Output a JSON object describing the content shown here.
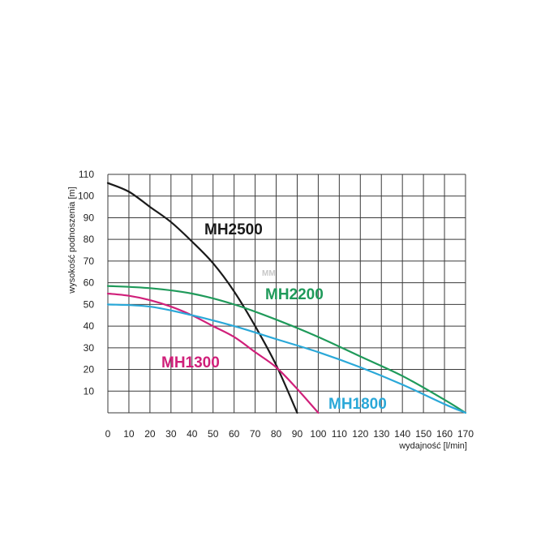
{
  "chart_data": {
    "type": "line",
    "xlabel": "wydajność [l/min]",
    "ylabel": "wysokość podnoszenia [m]",
    "xlim": [
      0,
      170
    ],
    "ylim": [
      0,
      110
    ],
    "x_ticks": [
      0,
      10,
      20,
      30,
      40,
      50,
      60,
      70,
      80,
      90,
      100,
      110,
      120,
      130,
      140,
      150,
      160,
      170
    ],
    "y_ticks": [
      10,
      20,
      30,
      40,
      50,
      60,
      70,
      80,
      90,
      100,
      110
    ],
    "grid": true,
    "small_mark": "MM",
    "series": [
      {
        "name": "MH2500",
        "color": "#1a1a1a",
        "points": [
          [
            0,
            106
          ],
          [
            10,
            102
          ],
          [
            20,
            95
          ],
          [
            30,
            88
          ],
          [
            40,
            79
          ],
          [
            50,
            69
          ],
          [
            60,
            56
          ],
          [
            70,
            40
          ],
          [
            80,
            22
          ],
          [
            90,
            0
          ]
        ]
      },
      {
        "name": "MH2200",
        "color": "#1f9a5a",
        "points": [
          [
            0,
            58.5
          ],
          [
            20,
            57.5
          ],
          [
            40,
            55
          ],
          [
            60,
            50
          ],
          [
            80,
            43
          ],
          [
            100,
            35
          ],
          [
            120,
            26
          ],
          [
            140,
            17
          ],
          [
            160,
            6
          ],
          [
            170,
            0
          ]
        ]
      },
      {
        "name": "MH1300",
        "color": "#d0207a",
        "points": [
          [
            0,
            55
          ],
          [
            10,
            54
          ],
          [
            20,
            52
          ],
          [
            30,
            49
          ],
          [
            40,
            45
          ],
          [
            50,
            40
          ],
          [
            60,
            35
          ],
          [
            70,
            28
          ],
          [
            80,
            21
          ],
          [
            90,
            11
          ],
          [
            100,
            0
          ]
        ]
      },
      {
        "name": "MH1800",
        "color": "#2aa8d8",
        "points": [
          [
            0,
            50
          ],
          [
            20,
            49
          ],
          [
            40,
            45
          ],
          [
            60,
            40
          ],
          [
            80,
            34
          ],
          [
            100,
            28
          ],
          [
            120,
            21
          ],
          [
            140,
            13
          ],
          [
            160,
            4
          ],
          [
            170,
            0
          ]
        ]
      }
    ]
  }
}
